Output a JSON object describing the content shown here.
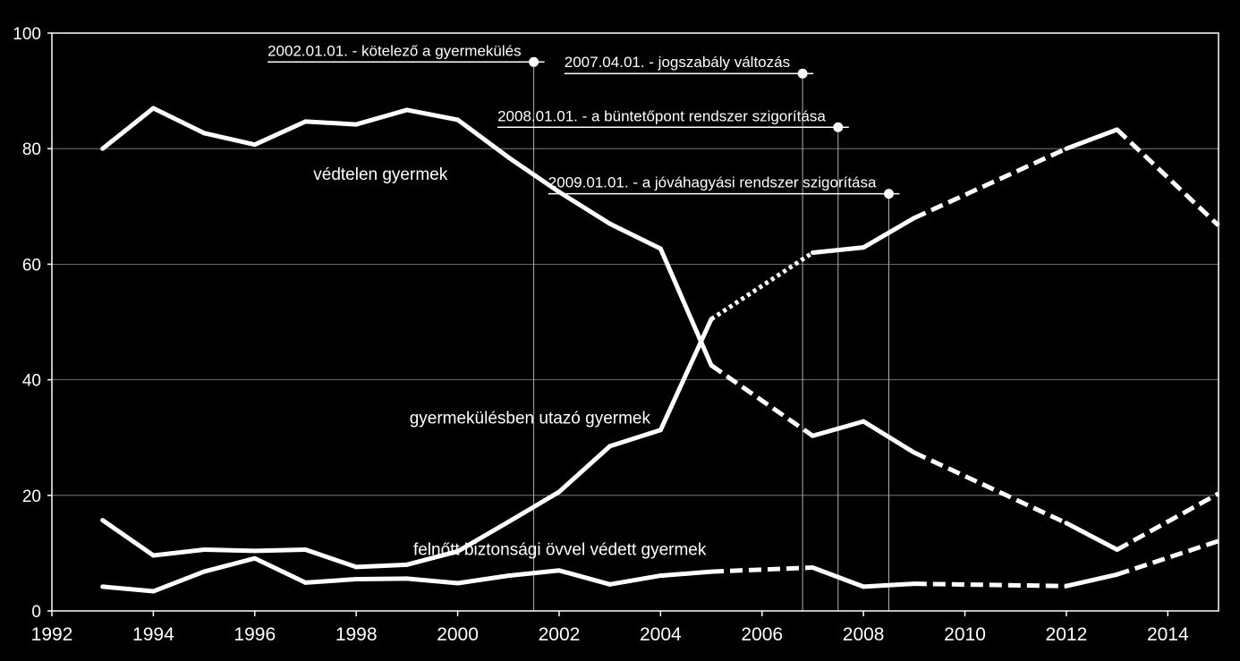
{
  "chart_data": {
    "type": "line",
    "x": [
      1993,
      1994,
      1995,
      1996,
      1997,
      1998,
      1999,
      2000,
      2001,
      2002,
      2003,
      2004,
      2005,
      2006,
      2007,
      2008,
      2009,
      2010,
      2011,
      2012,
      2013,
      2014,
      2015
    ],
    "xlim": [
      1992,
      2015
    ],
    "ylim": [
      0,
      100
    ],
    "xticks": [
      "1992",
      "1994",
      "1996",
      "1998",
      "2000",
      "2002",
      "2004",
      "2006",
      "2008",
      "2010",
      "2012",
      "2014"
    ],
    "yticks": [
      "0",
      "20",
      "40",
      "60",
      "80",
      "100"
    ],
    "grid": true,
    "background": "#000000",
    "line_color": "#ffffff",
    "series": [
      {
        "name": "védtelen gyermek",
        "points": [
          [
            1993,
            80
          ],
          [
            1994,
            87
          ],
          [
            1995,
            82.7
          ],
          [
            1996,
            80.7
          ],
          [
            1997,
            84.7
          ],
          [
            1998,
            84.2
          ],
          [
            1999,
            86.7
          ],
          [
            2000,
            85
          ],
          [
            2001,
            78.5
          ],
          [
            2002,
            72.5
          ],
          [
            2003,
            67
          ],
          [
            2004,
            62.7
          ],
          [
            2005,
            42.5
          ],
          [
            2007,
            30.3
          ],
          [
            2008,
            32.8
          ],
          [
            2009,
            27.4
          ],
          [
            2012,
            15.2
          ],
          [
            2013,
            10.6
          ],
          [
            2015,
            20.3
          ]
        ],
        "styles": [
          "solid",
          "solid",
          "solid",
          "solid",
          "solid",
          "solid",
          "solid",
          "solid",
          "solid",
          "solid",
          "solid",
          "solid",
          "dashed",
          "solid",
          "solid",
          "dashed",
          "solid",
          "dashed"
        ]
      },
      {
        "name": "gyermekülésben utazó gyermek",
        "points": [
          [
            1993,
            15.7
          ],
          [
            1994,
            9.6
          ],
          [
            1995,
            10.6
          ],
          [
            1996,
            10.4
          ],
          [
            1997,
            10.6
          ],
          [
            1998,
            7.6
          ],
          [
            1999,
            8
          ],
          [
            2000,
            10.3
          ],
          [
            2001,
            15.4
          ],
          [
            2002,
            20.6
          ],
          [
            2003,
            28.5
          ],
          [
            2004,
            31.3
          ],
          [
            2005,
            50.5
          ],
          [
            2007,
            62
          ],
          [
            2008,
            62.9
          ],
          [
            2009,
            68
          ],
          [
            2012,
            80
          ],
          [
            2013,
            83.3
          ],
          [
            2015,
            66.7
          ]
        ],
        "styles": [
          "solid",
          "solid",
          "solid",
          "solid",
          "solid",
          "solid",
          "solid",
          "solid",
          "solid",
          "solid",
          "solid",
          "solid",
          "dotted",
          "solid",
          "solid",
          "dashed",
          "solid",
          "dashed"
        ]
      },
      {
        "name": "felnőtt biztonsági övvel védett gyermek",
        "points": [
          [
            1993,
            4.2
          ],
          [
            1994,
            3.4
          ],
          [
            1995,
            6.8
          ],
          [
            1996,
            9.1
          ],
          [
            1997,
            4.9
          ],
          [
            1998,
            5.5
          ],
          [
            1999,
            5.6
          ],
          [
            2000,
            4.8
          ],
          [
            2001,
            6.1
          ],
          [
            2002,
            7
          ],
          [
            2003,
            4.6
          ],
          [
            2004,
            6.1
          ],
          [
            2005,
            6.8
          ],
          [
            2007,
            7.5
          ],
          [
            2008,
            4.2
          ],
          [
            2009,
            4.7
          ],
          [
            2012,
            4.3
          ],
          [
            2013,
            6.3
          ],
          [
            2015,
            12.1
          ]
        ],
        "styles": [
          "solid",
          "solid",
          "solid",
          "solid",
          "solid",
          "solid",
          "solid",
          "solid",
          "solid",
          "solid",
          "solid",
          "solid",
          "dashed",
          "solid",
          "solid",
          "dashed",
          "solid",
          "dashed"
        ]
      }
    ],
    "series_labels": [
      {
        "text": "védtelen gyermek",
        "x": 1999.8,
        "y": 74.6
      },
      {
        "text": "gyermekülésben utazó gyermek",
        "x": 2003.8,
        "y": 32.4
      },
      {
        "text": "felnőtt biztonsági övvel védett gyermek",
        "x": 2004.9,
        "y": 9.7
      }
    ],
    "events": [
      {
        "label": "2002.01.01. - kötelező a gyermekülés",
        "x": 2001.5,
        "y": 95
      },
      {
        "label": "2007.04.01. - jogszabály változás",
        "x": 2006.8,
        "y": 93
      },
      {
        "label": "2008.01.01. - a büntetőpont rendszer szigorítása",
        "x": 2007.5,
        "y": 83.7
      },
      {
        "label": "2009.01.01. - a jóváhagyási rendszer szigorítása",
        "x": 2008.5,
        "y": 72.2
      }
    ]
  }
}
